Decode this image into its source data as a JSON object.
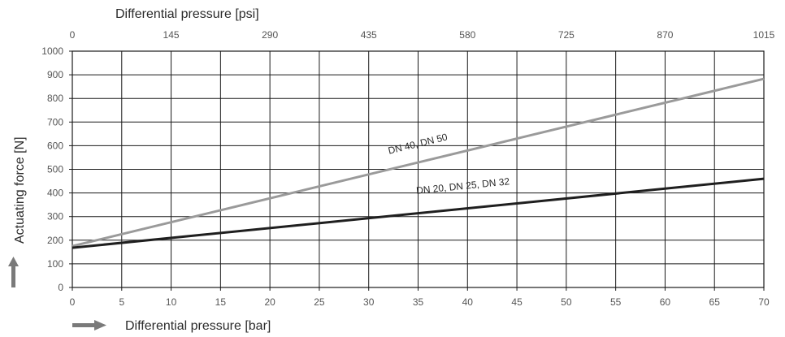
{
  "chart_data": {
    "type": "line",
    "x_label_bottom": "Differential pressure [bar]",
    "x_label_top": "Differential pressure [psi]",
    "y_label": "Actuating force [N]",
    "x_ticks": [
      "0",
      "5",
      "10",
      "15",
      "20",
      "25",
      "30",
      "35",
      "40",
      "45",
      "50",
      "55",
      "60",
      "65",
      "70"
    ],
    "x_top_ticks": [
      "0",
      "145",
      "290",
      "435",
      "580",
      "725",
      "870",
      "1015"
    ],
    "y_ticks": [
      "0",
      "100",
      "200",
      "300",
      "400",
      "500",
      "600",
      "700",
      "800",
      "900",
      "1000"
    ],
    "xlim": [
      0,
      70
    ],
    "ylim": [
      0,
      1000
    ],
    "grid": true,
    "series": [
      {
        "name": "DN 40, DN 50",
        "x": [
          0,
          70
        ],
        "y": [
          175,
          883
        ],
        "color": "#9a9a9a"
      },
      {
        "name": "DN 20, DN 25, DN 32",
        "x": [
          0,
          70
        ],
        "y": [
          168,
          460
        ],
        "color": "#1f1f1f"
      }
    ],
    "arrow_color": "#7a7a7a"
  }
}
